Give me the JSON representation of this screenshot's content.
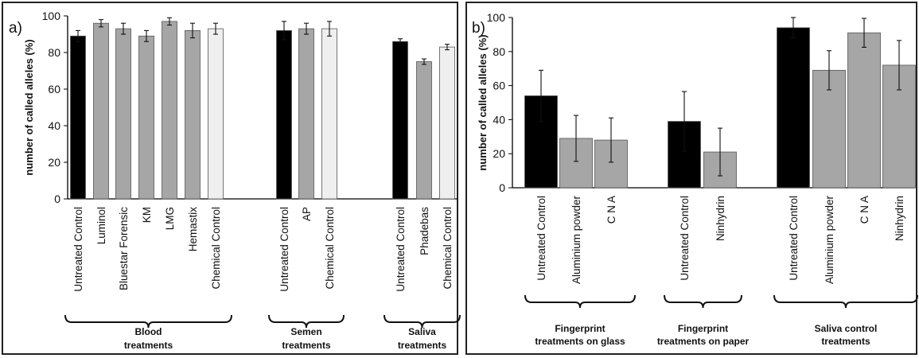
{
  "colors": {
    "untreated": "#000000",
    "treated": "#a6a6a6",
    "chemical": "#efefef"
  },
  "chart_data": [
    {
      "type": "bar",
      "panel_label": "a)",
      "ylabel": "number of called alleles (%)",
      "ylim": [
        0,
        100
      ],
      "yticks": [
        0,
        20,
        40,
        60,
        80,
        100
      ],
      "groups": [
        {
          "label": [
            "Blood",
            "treatments"
          ],
          "categories": [
            "Untreated Control",
            "Luminol",
            "Bluestar Forensic",
            "KM",
            "LMG",
            "Hemastix",
            "Chemical Control"
          ],
          "values": [
            89,
            96,
            93,
            89,
            97,
            92,
            93
          ],
          "errors": [
            3,
            2,
            3,
            3,
            2,
            4,
            3
          ],
          "kinds": [
            "untreated",
            "treated",
            "treated",
            "treated",
            "treated",
            "treated",
            "chemical"
          ]
        },
        {
          "label": [
            "Semen",
            "treatments"
          ],
          "categories": [
            "Untreated Control",
            "AP",
            "Chemical Control"
          ],
          "values": [
            92,
            93,
            93
          ],
          "errors": [
            5,
            3,
            4
          ],
          "kinds": [
            "untreated",
            "treated",
            "chemical"
          ]
        },
        {
          "label": [
            "Saliva",
            "treatments"
          ],
          "categories": [
            "Untreated Control",
            "Phadebas",
            "Chemical Control"
          ],
          "values": [
            86,
            75,
            83
          ],
          "errors": [
            1.5,
            1.5,
            1.5
          ],
          "kinds": [
            "untreated",
            "treated",
            "chemical"
          ]
        }
      ]
    },
    {
      "type": "bar",
      "panel_label": "b)",
      "ylabel": "number of called alleles (%)",
      "ylim": [
        0,
        100
      ],
      "yticks": [
        0,
        20,
        40,
        60,
        80,
        100
      ],
      "groups": [
        {
          "label": [
            "Fingerprint",
            "treatments on glass"
          ],
          "categories": [
            "Untreated Control",
            "Aluminium powder",
            "C N A"
          ],
          "values": [
            54,
            29,
            28
          ],
          "errors": [
            15,
            13.5,
            13
          ],
          "kinds": [
            "untreated",
            "treated",
            "treated"
          ]
        },
        {
          "label": [
            "Fingerprint",
            "treatments on paper"
          ],
          "categories": [
            "Untreated Control",
            "Ninhydrin"
          ],
          "values": [
            39,
            21
          ],
          "errors": [
            17.5,
            14
          ],
          "kinds": [
            "untreated",
            "treated"
          ]
        },
        {
          "label": [
            "Saliva control",
            "treatments"
          ],
          "categories": [
            "Untreated Control",
            "Aluminium powder",
            "C N A",
            "Ninhydrin"
          ],
          "values": [
            94,
            69,
            91,
            72
          ],
          "errors": [
            6,
            11.5,
            8.5,
            14.5
          ],
          "kinds": [
            "untreated",
            "treated",
            "treated",
            "treated"
          ]
        }
      ]
    }
  ]
}
